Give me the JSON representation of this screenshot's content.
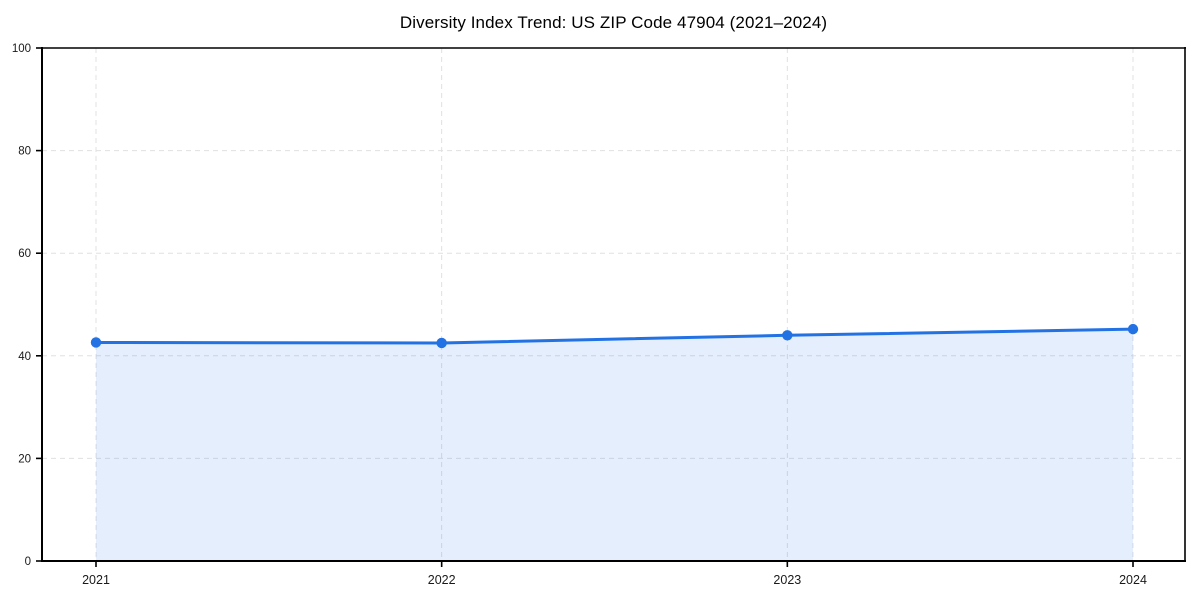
{
  "page": {
    "background_color": "#ffffff"
  },
  "chart_data": {
    "type": "area",
    "title": "Diversity Index Trend: US ZIP Code 47904 (2021–2024)",
    "categories": [
      "2021",
      "2022",
      "2023",
      "2024"
    ],
    "values": [
      42.6,
      42.5,
      44.0,
      45.2
    ],
    "xlabel": "",
    "ylabel": "",
    "ylim": [
      0,
      100
    ],
    "yticks": [
      0,
      20,
      40,
      60,
      80,
      100
    ],
    "grid": "dashed, both axes",
    "legend": "none",
    "markers": "filled circles at each year",
    "colors": {
      "line": "#2372e4",
      "marker": "#2372e4",
      "fill": "#2372e4",
      "fill_opacity": 0.12,
      "gridline": "#e0e0e0",
      "axis_frame": "#000000",
      "tick_label": "#1a1a1a",
      "title": "#000000"
    }
  }
}
